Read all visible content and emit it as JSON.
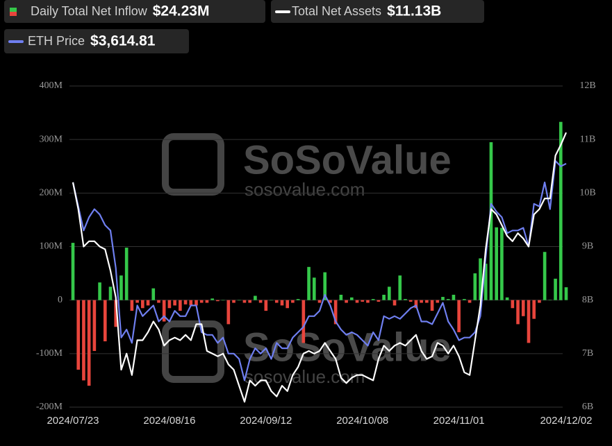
{
  "chart_data": {
    "type": "combo",
    "watermark": "SoSoValue",
    "watermark_url": "sosovalue.com",
    "categories": [
      "2024/07/23",
      null,
      null,
      null,
      null,
      null,
      null,
      null,
      null,
      null,
      null,
      null,
      null,
      null,
      null,
      null,
      null,
      null,
      "2024/08/16",
      null,
      null,
      null,
      null,
      null,
      null,
      null,
      null,
      null,
      null,
      null,
      null,
      null,
      null,
      null,
      null,
      null,
      "2024/09/12",
      null,
      null,
      null,
      null,
      null,
      null,
      null,
      null,
      null,
      null,
      null,
      null,
      null,
      null,
      null,
      null,
      null,
      "2024/10/08",
      null,
      null,
      null,
      null,
      null,
      null,
      null,
      null,
      null,
      null,
      null,
      null,
      null,
      null,
      null,
      null,
      null,
      "2024/11/01",
      null,
      null,
      null,
      null,
      null,
      null,
      null,
      null,
      null,
      null,
      null,
      null,
      null,
      null,
      null,
      null,
      null,
      null,
      null,
      "2024/12/02"
    ],
    "series": [
      {
        "name": "Daily Total Net Inflow",
        "latest": "$24.23M",
        "type": "bar",
        "positive_color": "#35c84a",
        "negative_color": "#e8453c",
        "values": [
          107,
          -130,
          -150,
          -160,
          -95,
          33,
          -77,
          25,
          -50,
          46,
          98,
          -20,
          -5,
          -15,
          -10,
          22,
          -5,
          -40,
          -15,
          -10,
          -20,
          -8,
          -10,
          -10,
          -5,
          -5,
          3,
          -2,
          0,
          -45,
          -5,
          0,
          -5,
          -5,
          8,
          -5,
          -20,
          0,
          -5,
          -10,
          -15,
          -5,
          2,
          -80,
          62,
          42,
          -5,
          52,
          -5,
          -45,
          10,
          -5,
          5,
          -5,
          -3,
          -5,
          2,
          -3,
          10,
          25,
          -10,
          46,
          2,
          -3,
          -15,
          -5,
          -5,
          -20,
          -5,
          6,
          2,
          10,
          -60,
          2,
          -5,
          50,
          78,
          68,
          295,
          136,
          135,
          5,
          -15,
          -45,
          -30,
          -80,
          -35,
          -5,
          90,
          0.5,
          40,
          333,
          24
        ]
      },
      {
        "name": "Total Net Assets",
        "latest": "$11.13B",
        "type": "line",
        "axis": "y2",
        "color": "#ffffff",
        "values": [
          10.2,
          9.7,
          9.0,
          9.1,
          9.1,
          9.0,
          8.95,
          8.55,
          8.05,
          6.7,
          7.0,
          6.6,
          7.25,
          7.25,
          7.4,
          7.6,
          7.45,
          7.15,
          7.25,
          7.3,
          7.25,
          7.35,
          7.25,
          7.55,
          7.55,
          7.05,
          7.0,
          6.95,
          7.0,
          6.8,
          6.7,
          6.4,
          6.1,
          6.5,
          6.4,
          6.5,
          6.5,
          6.3,
          6.2,
          6.4,
          6.3,
          6.6,
          6.75,
          7.0,
          7.05,
          7.0,
          7.05,
          7.2,
          7.05,
          6.9,
          6.55,
          6.45,
          6.55,
          6.6,
          6.6,
          6.55,
          6.5,
          6.9,
          7.15,
          7.05,
          7.15,
          7.2,
          7.15,
          7.25,
          7.35,
          7.05,
          6.9,
          6.95,
          7.2,
          7.15,
          7.0,
          7.15,
          6.95,
          6.65,
          6.6,
          7.25,
          7.9,
          8.95,
          9.7,
          9.6,
          9.4,
          9.2,
          9.1,
          9.25,
          9.15,
          9.0,
          9.6,
          9.7,
          9.9,
          9.9,
          10.7,
          10.9,
          11.13
        ]
      },
      {
        "name": "ETH Price",
        "latest": "$3,614.81",
        "type": "line",
        "axis": "y2",
        "color": "#6f7ff0",
        "values": [
          10.2,
          9.75,
          9.3,
          9.55,
          9.7,
          9.6,
          9.4,
          9.3,
          8.6,
          7.3,
          7.45,
          7.2,
          7.9,
          7.7,
          7.8,
          7.9,
          7.6,
          7.7,
          7.6,
          7.8,
          7.7,
          7.7,
          7.9,
          7.9,
          7.4,
          7.35,
          7.35,
          7.2,
          7.3,
          7.0,
          7.0,
          6.9,
          6.5,
          6.9,
          7.1,
          7.0,
          7.1,
          6.9,
          7.2,
          7.1,
          7.1,
          7.3,
          7.4,
          7.5,
          7.7,
          7.7,
          7.8,
          8.1,
          7.9,
          7.6,
          7.45,
          7.35,
          7.4,
          7.35,
          7.25,
          7.15,
          7.4,
          7.25,
          7.7,
          7.65,
          7.7,
          7.65,
          7.75,
          7.85,
          7.9,
          7.6,
          7.6,
          7.55,
          7.75,
          7.95,
          7.6,
          7.45,
          7.25,
          7.3,
          7.3,
          7.4,
          7.7,
          8.8,
          9.8,
          9.65,
          9.55,
          9.25,
          9.3,
          9.3,
          9.35,
          9.0,
          9.8,
          9.75,
          10.2,
          9.7,
          10.6,
          10.5,
          10.55
        ]
      }
    ],
    "ylim": [
      -200,
      400
    ],
    "yticks": [
      {
        "value": -200,
        "label": "-200M"
      },
      {
        "value": -100,
        "label": "-100M"
      },
      0,
      {
        "value": 100,
        "label": "100M"
      },
      {
        "value": 200,
        "label": "200M"
      },
      {
        "value": 300,
        "label": "300M"
      },
      {
        "value": 400,
        "label": "400M"
      }
    ],
    "y2lim": [
      6,
      12
    ],
    "y2ticks": [
      {
        "value": 6,
        "label": "6B"
      },
      {
        "value": 7,
        "label": "7B"
      },
      {
        "value": 8,
        "label": "8B"
      },
      {
        "value": 9,
        "label": "9B"
      },
      {
        "value": 10,
        "label": "10B"
      },
      {
        "value": 11,
        "label": "11B"
      },
      {
        "value": 12,
        "label": "12B"
      }
    ],
    "grid": true
  }
}
